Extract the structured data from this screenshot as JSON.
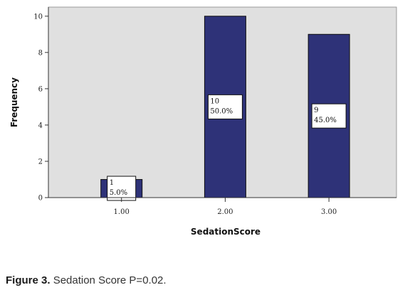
{
  "chart_data": {
    "type": "bar",
    "categories": [
      "1.00",
      "2.00",
      "3.00"
    ],
    "values": [
      1,
      10,
      9
    ],
    "data_labels": [
      [
        "1",
        "5.0%"
      ],
      [
        "10",
        "50.0%"
      ],
      [
        "9",
        "45.0%"
      ]
    ],
    "y_ticks": [
      "0",
      "2",
      "4",
      "6",
      "8",
      "10"
    ],
    "xlabel": "SedationScore",
    "ylabel": "Frequency",
    "ylim": [
      0,
      10.5
    ],
    "grid": false,
    "bar_color": "#2e3278",
    "plot_background": "#e0e0e0"
  },
  "caption": {
    "prefix": "Figure 3.",
    "text": "Sedation Score P=0.02."
  }
}
